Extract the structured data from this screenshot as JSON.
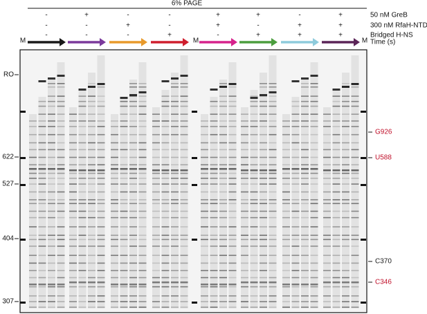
{
  "header": {
    "title": "6% PAGE"
  },
  "conditions": {
    "labels": [
      "50 nM GreB",
      "300 nM RfaH-NTD",
      "Bridged H-NS",
      "Time (s)"
    ],
    "groups": [
      {
        "color": "#1a1a1a",
        "signs": [
          "-",
          "-",
          "-"
        ]
      },
      {
        "color": "#7b3a9c",
        "signs": [
          "+",
          "-",
          "-"
        ]
      },
      {
        "color": "#e89a2c",
        "signs": [
          "-",
          "+",
          "-"
        ]
      },
      {
        "color": "#cf1f2e",
        "signs": [
          "-",
          "-",
          "+"
        ]
      },
      {
        "color": "#d6238c",
        "signs": [
          "+",
          "+",
          "-"
        ]
      },
      {
        "color": "#4c9e3e",
        "signs": [
          "+",
          "-",
          "+"
        ]
      },
      {
        "color": "#8ecbdc",
        "signs": [
          "-",
          "+",
          "+"
        ]
      },
      {
        "color": "#5b2558",
        "signs": [
          "+",
          "+",
          "+"
        ]
      }
    ]
  },
  "marker_lanes": [
    "M",
    "M",
    "M"
  ],
  "left_labels": [
    "RO",
    "622",
    "527",
    "404",
    "307"
  ],
  "right_labels": [
    {
      "text": "G926",
      "color": "#c0102a"
    },
    {
      "text": "U588",
      "color": "#c0102a"
    },
    {
      "text": "C370",
      "color": "#1a1a1a"
    },
    {
      "text": "C346",
      "color": "#c0102a"
    }
  ]
}
